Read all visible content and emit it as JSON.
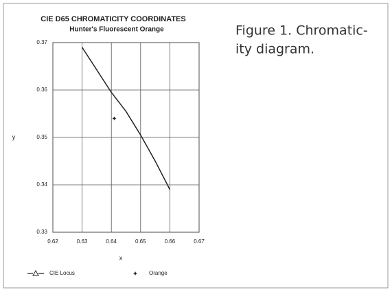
{
  "chart_data": {
    "type": "line",
    "title": "CIE D65 CHROMATICITY COORDINATES",
    "subtitle": "Hunter's Fluorescent Orange",
    "x_label": "x",
    "y_label": "y",
    "xlim": [
      0.62,
      0.67
    ],
    "xticks": [
      0.62,
      0.63,
      0.64,
      0.65,
      0.66,
      0.67
    ],
    "ylim": [
      0.33,
      0.37
    ],
    "yticks": [
      0.33,
      0.34,
      0.35,
      0.36,
      0.37
    ],
    "grid": true,
    "series": [
      {
        "name": "CIE Locus",
        "color": "#222222",
        "marker": "triangle",
        "x": [
          0.63,
          0.64,
          0.645,
          0.65,
          0.655,
          0.66
        ],
        "values": [
          0.369,
          0.3595,
          0.3555,
          0.3505,
          0.345,
          0.339
        ]
      },
      {
        "name": "Orange",
        "color": "#222222",
        "marker": "star",
        "x": [
          0.641
        ],
        "values": [
          0.354
        ]
      }
    ]
  },
  "caption": [
    "Figure 1. Chromatic-",
    "ity diagram."
  ]
}
